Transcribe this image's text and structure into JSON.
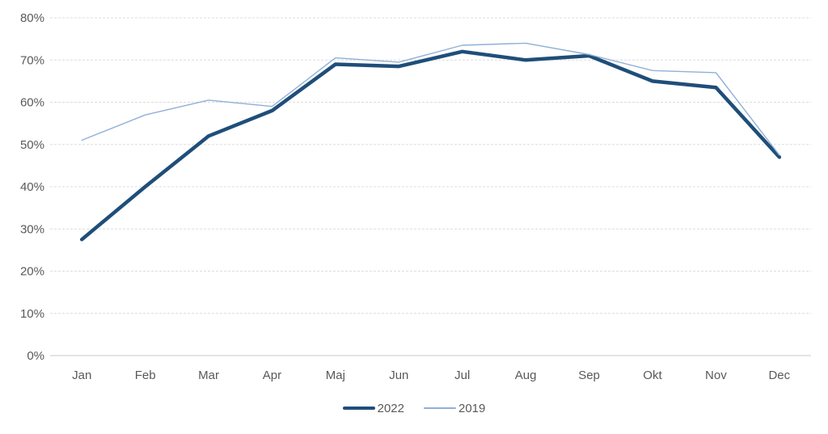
{
  "chart": {
    "colors": {
      "series_2022": "#1F4E79",
      "series_2019": "#8FB0D8",
      "gridline": "#DCDCDC",
      "baseline": "#C9C9C9",
      "label": "#595959",
      "background": "#FFFFFF"
    }
  },
  "chart_data": {
    "type": "line",
    "title": "",
    "xlabel": "",
    "ylabel": "",
    "categories": [
      "Jan",
      "Feb",
      "Mar",
      "Apr",
      "Maj",
      "Jun",
      "Jul",
      "Aug",
      "Sep",
      "Okt",
      "Nov",
      "Dec"
    ],
    "series": [
      {
        "name": "2022",
        "color": "#1F4E79",
        "stroke_width": 4.5,
        "values": [
          27.5,
          40,
          52,
          58,
          69,
          68.5,
          72,
          70,
          71,
          65,
          63.5,
          47
        ]
      },
      {
        "name": "2019",
        "color": "#8FB0D8",
        "stroke_width": 1.4,
        "values": [
          51,
          57,
          60.5,
          59,
          70.5,
          69.5,
          73.5,
          74,
          71.3,
          67.5,
          67,
          47.5
        ]
      }
    ],
    "ylim": [
      0,
      80
    ],
    "ytick_step": 10,
    "ytick_labels": [
      "0%",
      "10%",
      "20%",
      "30%",
      "40%",
      "50%",
      "60%",
      "70%",
      "80%"
    ],
    "grid": true,
    "grid_style": "dashed",
    "legend_position": "bottom-center"
  }
}
